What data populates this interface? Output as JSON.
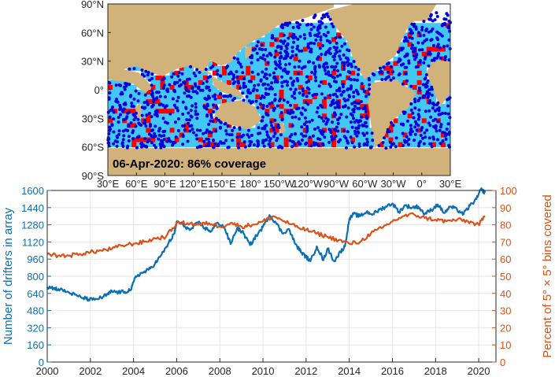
{
  "colors": {
    "land": "#d1b27a",
    "ocean_unsampled": "#ffffff",
    "bin_covered": "#43c7f5",
    "bin_gap": "#ff0000",
    "drifter": "#0000dd",
    "drifters_series": "#0b6fb3",
    "coverage_series": "#d95319",
    "grid": "#e6e6e6",
    "axis": "#262626"
  },
  "chart_data": [
    {
      "type": "map",
      "annotation": "06-Apr-2020:  86% coverage",
      "lat_ticks": [
        "90°N",
        "60°N",
        "30°N",
        "0°",
        "30°S",
        "60°S",
        "90°S"
      ],
      "lon_ticks": [
        "30°E",
        "60°E",
        "90°E",
        "120°E",
        "150°E",
        "180°",
        "150°W",
        "120°W",
        "90°W",
        "60°W",
        "30°W",
        "0°",
        "30°E"
      ]
    },
    {
      "type": "line",
      "x_ticks": [
        "2000",
        "2002",
        "2004",
        "2006",
        "2008",
        "2010",
        "2012",
        "2014",
        "2016",
        "2018",
        "2020"
      ],
      "xlim": [
        2000,
        2020.8
      ],
      "ylabel_left": "Number of drifters in array",
      "ylim_left": [
        0,
        1600
      ],
      "yticks_left": [
        "0",
        "160",
        "320",
        "480",
        "640",
        "800",
        "960",
        "1120",
        "1280",
        "1440",
        "1600"
      ],
      "ylabel_right": "Percent of 5° × 5° bins covered",
      "ylim_right": [
        0,
        100
      ],
      "yticks_right": [
        "0",
        "10",
        "20",
        "30",
        "40",
        "50",
        "60",
        "70",
        "80",
        "90",
        "100"
      ],
      "grid": true,
      "series": [
        {
          "axis": "left",
          "x": [
            2000,
            2000.3,
            2000.6,
            2001,
            2001.4,
            2001.8,
            2002.1,
            2002.5,
            2002.8,
            2003,
            2003.3,
            2003.6,
            2003.9,
            2004.1,
            2004.4,
            2004.7,
            2005,
            2005.3,
            2005.6,
            2005.9,
            2006,
            2006.3,
            2006.6,
            2007,
            2007.3,
            2007.6,
            2007.9,
            2008.2,
            2008.5,
            2008.8,
            2009.1,
            2009.4,
            2009.7,
            2010,
            2010.3,
            2010.6,
            2010.9,
            2011.2,
            2011.5,
            2011.8,
            2012,
            2012.2,
            2012.5,
            2012.8,
            2013,
            2013.3,
            2013.6,
            2013.8,
            2014,
            2014.2,
            2014.5,
            2014.8,
            2015.1,
            2015.4,
            2015.7,
            2016,
            2016.3,
            2016.6,
            2016.9,
            2017.2,
            2017.5,
            2017.8,
            2018.1,
            2018.4,
            2018.7,
            2019,
            2019.3,
            2019.6,
            2019.9,
            2020.1,
            2020.3
          ],
          "values": [
            700,
            690,
            675,
            650,
            615,
            590,
            580,
            600,
            630,
            660,
            650,
            655,
            680,
            800,
            830,
            860,
            920,
            1000,
            1100,
            1200,
            1310,
            1280,
            1230,
            1300,
            1250,
            1220,
            1300,
            1260,
            1100,
            1250,
            1200,
            1090,
            1180,
            1260,
            1370,
            1300,
            1200,
            1240,
            1100,
            1020,
            980,
            940,
            1080,
            950,
            1060,
            940,
            1030,
            1080,
            1330,
            1380,
            1360,
            1400,
            1380,
            1420,
            1450,
            1480,
            1400,
            1460,
            1440,
            1450,
            1380,
            1420,
            1470,
            1390,
            1450,
            1420,
            1380,
            1460,
            1520,
            1610,
            1580
          ]
        },
        {
          "axis": "right",
          "x": [
            2000,
            2000.5,
            2001,
            2001.5,
            2002,
            2002.5,
            2003,
            2003.5,
            2004,
            2004.5,
            2005,
            2005.5,
            2006,
            2006.5,
            2007,
            2007.5,
            2008,
            2008.5,
            2009,
            2009.5,
            2010,
            2010.5,
            2011,
            2011.5,
            2012,
            2012.5,
            2013,
            2013.5,
            2014,
            2014.5,
            2015,
            2015.5,
            2016,
            2016.5,
            2017,
            2017.5,
            2018,
            2018.5,
            2019,
            2019.5,
            2020,
            2020.3
          ],
          "values": [
            63,
            62,
            62,
            63,
            64,
            65,
            66,
            68,
            69,
            70,
            72,
            73,
            81,
            81,
            80,
            81,
            79,
            81,
            79,
            80,
            82,
            85,
            82,
            79,
            77,
            75,
            73,
            71,
            69,
            70,
            75,
            78,
            82,
            85,
            86,
            84,
            83,
            82,
            83,
            82,
            80,
            85
          ]
        }
      ]
    }
  ]
}
